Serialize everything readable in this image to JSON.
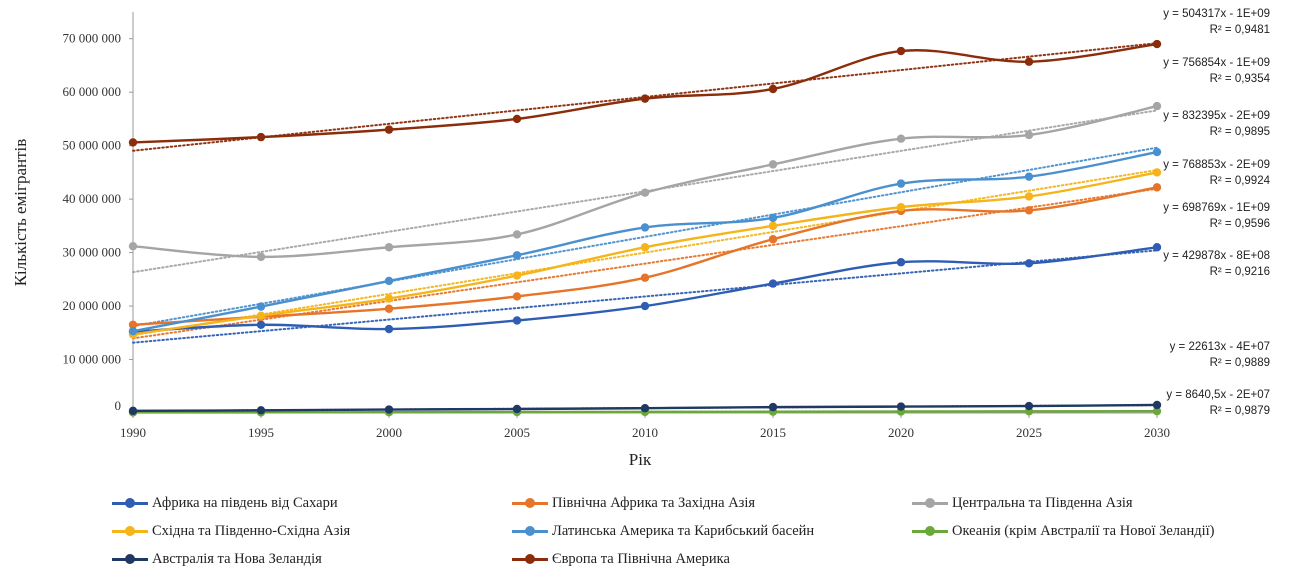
{
  "chart_data": {
    "type": "line",
    "xlabel": "Рік",
    "ylabel": "Кількість емігрантів",
    "x": [
      1990,
      1995,
      2000,
      2005,
      2010,
      2015,
      2020,
      2025,
      2030
    ],
    "y_ticks": [
      "0",
      "10 000 000",
      "20 000 000",
      "30 000 000",
      "40 000 000",
      "50 000 000",
      "60 000 000",
      "70 000 000"
    ],
    "ylim": [
      0,
      75000000
    ],
    "grid": false,
    "legend_position": "bottom",
    "trendlines": "linear, dotted",
    "series": [
      {
        "name": "Африка на південь від Сахари",
        "color": "#2e5db3",
        "values": [
          15200000,
          16500000,
          15700000,
          17300000,
          20000000,
          24200000,
          28200000,
          28000000,
          31000000
        ]
      },
      {
        "name": "Північна Африка та Західна Азія",
        "color": "#e67429",
        "values": [
          16500000,
          18000000,
          19500000,
          21800000,
          25300000,
          32500000,
          37800000,
          37900000,
          42200000
        ]
      },
      {
        "name": "Центральна та Південна Азія",
        "color": "#a5a5a5",
        "values": [
          31200000,
          29200000,
          31000000,
          33400000,
          41200000,
          46500000,
          51300000,
          52000000,
          57400000
        ]
      },
      {
        "name": "Східна та Південно-Східна Азія",
        "color": "#f4b41a",
        "values": [
          14700000,
          18200000,
          21400000,
          25700000,
          31000000,
          35000000,
          38500000,
          40500000,
          45000000
        ]
      },
      {
        "name": "Латинська Америка та Карибський басейн",
        "color": "#4a90cf",
        "values": [
          15300000,
          19900000,
          24700000,
          29500000,
          34700000,
          36500000,
          42900000,
          44200000,
          48800000
        ]
      },
      {
        "name": "Океанія (крім Австралії та Нової Зеландії)",
        "color": "#6aa839",
        "values": [
          100000,
          120000,
          150000,
          180000,
          210000,
          250000,
          280000,
          310000,
          340000
        ]
      },
      {
        "name": "Австралія та Нова Зеландія",
        "color": "#203864",
        "values": [
          400000,
          500000,
          650000,
          750000,
          900000,
          1100000,
          1200000,
          1300000,
          1500000
        ]
      },
      {
        "name": "Європа та Північна Америка",
        "color": "#8b2c0a",
        "values": [
          50600000,
          51600000,
          53000000,
          55000000,
          58800000,
          60600000,
          67700000,
          65700000,
          69000000
        ]
      }
    ],
    "annotations": [
      {
        "eq": "y = 504317x - 1E+09",
        "r2": "R² = 0,9481"
      },
      {
        "eq": "y = 756854x - 1E+09",
        "r2": "R² = 0,9354"
      },
      {
        "eq": "y = 832395x - 2E+09",
        "r2": "R² = 0,9895"
      },
      {
        "eq": "y = 768853x - 2E+09",
        "r2": "R² = 0,9924"
      },
      {
        "eq": "y = 698769x - 1E+09",
        "r2": "R² = 0,9596"
      },
      {
        "eq": "y = 429878x - 8E+08",
        "r2": "R² = 0,9216"
      },
      {
        "eq": "y = 22613x - 4E+07",
        "r2": "R² = 0,9889"
      },
      {
        "eq": "y = 8640,5x - 2E+07",
        "r2": "R² = 0,9879"
      }
    ]
  }
}
